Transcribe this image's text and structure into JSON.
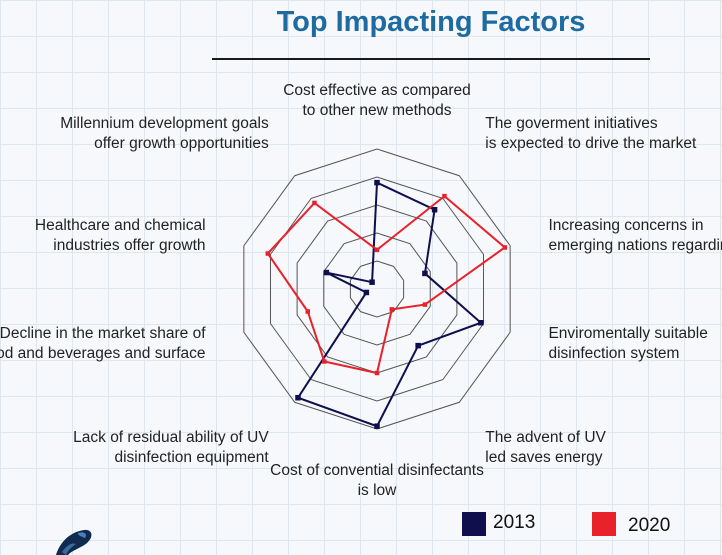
{
  "chart_data": {
    "type": "radar",
    "title": "Top Impacting Factors",
    "axes": [
      [
        "Cost effective as compared",
        "to other new methods"
      ],
      [
        "The goverment initiatives",
        "is expected to drive the market"
      ],
      [
        "Increasing concerns in",
        "emerging nations regarding"
      ],
      [
        "Enviromentally suitable",
        "disinfection system"
      ],
      [
        "The advent of UV",
        "led saves energy"
      ],
      [
        "Cost of convential disinfectants",
        "is low"
      ],
      [
        "Lack of residual ability of UV",
        "disinfection equipment"
      ],
      [
        "Decline in the market share of",
        "food and beverages and surface"
      ],
      [
        "Healthcare and chemical",
        "industries offer growth"
      ],
      [
        "Millennium development goals",
        "offer growth opportunities"
      ]
    ],
    "rlim": [
      0,
      5
    ],
    "rings": 5,
    "series": [
      {
        "name": "2013",
        "color": "#0f0f4e",
        "values": [
          3.8,
          3.5,
          1.8,
          3.9,
          2.5,
          4.9,
          4.8,
          0.4,
          1.9,
          0.3
        ]
      },
      {
        "name": "2020",
        "color": "#e8212b",
        "values": [
          1.4,
          4.1,
          4.8,
          1.8,
          0.9,
          3.0,
          3.2,
          2.6,
          4.1,
          3.8
        ]
      }
    ]
  },
  "legend": [
    {
      "label": "2013",
      "color": "#0f0f4e"
    },
    {
      "label": "2020",
      "color": "#e8212b"
    }
  ]
}
